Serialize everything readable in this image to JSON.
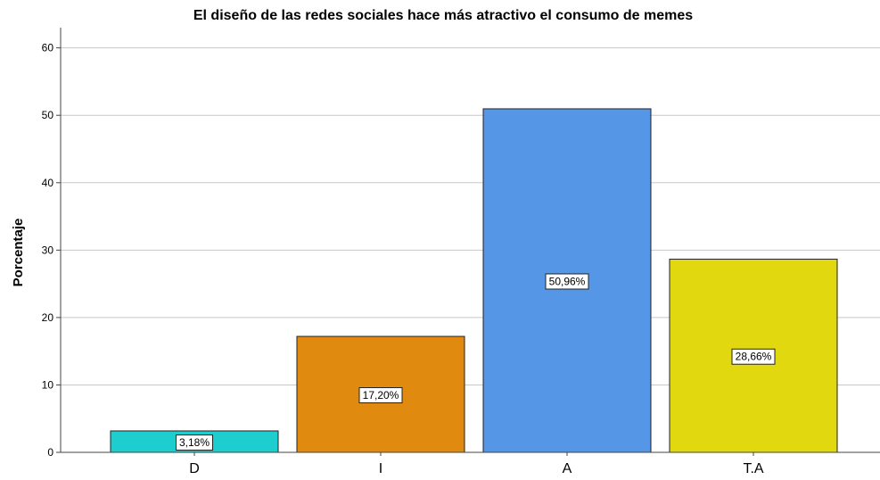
{
  "chart_data": {
    "type": "bar",
    "title": "El diseño de las redes sociales hace más atractivo el consumo de memes",
    "xlabel": "",
    "ylabel": "Porcentaje",
    "ylim": [
      0,
      63
    ],
    "yticks": [
      0,
      10,
      20,
      30,
      40,
      50,
      60
    ],
    "categories": [
      "D",
      "I",
      "A",
      "T.A"
    ],
    "values": [
      3.18,
      17.2,
      50.96,
      28.66
    ],
    "data_labels": [
      "3,18%",
      "17,20%",
      "50,96%",
      "28,66%"
    ],
    "colors": [
      "#1ecdcd",
      "#e08a10",
      "#5596e6",
      "#e2d810"
    ],
    "grid": true,
    "legend": "none"
  }
}
